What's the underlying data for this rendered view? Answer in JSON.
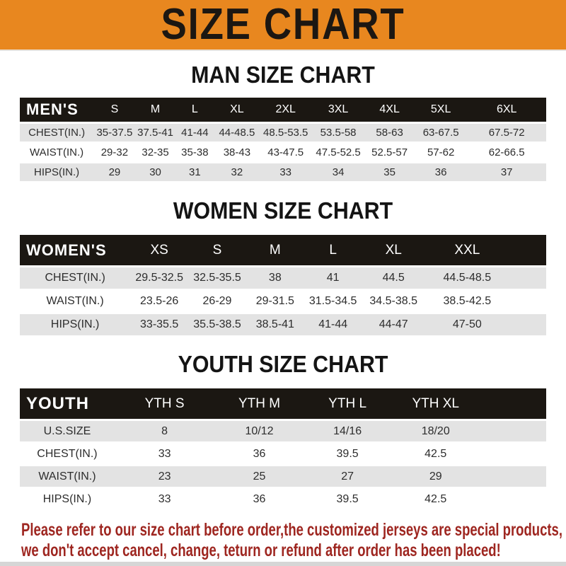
{
  "banner": {
    "title": "SIZE CHART"
  },
  "colors": {
    "banner_orange": "#E8871F",
    "header_bar_black": "#1B1712",
    "row_gray": "#E3E3E3",
    "footer_red": "#9E2620"
  },
  "sections": {
    "men": {
      "heading": "MAN SIZE CHART",
      "table": {
        "header": [
          "MEN'S",
          "S",
          "M",
          "L",
          "XL",
          "2XL",
          "3XL",
          "4XL",
          "5XL",
          "6XL"
        ],
        "rows": [
          [
            "CHEST(IN.)",
            "35-37.5",
            "37.5-41",
            "41-44",
            "44-48.5",
            "48.5-53.5",
            "53.5-58",
            "58-63",
            "63-67.5",
            "67.5-72"
          ],
          [
            "WAIST(IN.)",
            "29-32",
            "32-35",
            "35-38",
            "38-43",
            "43-47.5",
            "47.5-52.5",
            "52.5-57",
            "57-62",
            "62-66.5"
          ],
          [
            "HIPS(IN.)",
            "29",
            "30",
            "31",
            "32",
            "33",
            "34",
            "35",
            "36",
            "37"
          ]
        ]
      }
    },
    "women": {
      "heading": "WOMEN SIZE CHART",
      "table": {
        "header": [
          "WOMEN'S",
          "XS",
          "S",
          "M",
          "L",
          "XL",
          "XXL"
        ],
        "rows": [
          [
            "CHEST(IN.)",
            "29.5-32.5",
            "32.5-35.5",
            "38",
            "41",
            "44.5",
            "44.5-48.5"
          ],
          [
            "WAIST(IN.)",
            "23.5-26",
            "26-29",
            "29-31.5",
            "31.5-34.5",
            "34.5-38.5",
            "38.5-42.5"
          ],
          [
            "HIPS(IN.)",
            "33-35.5",
            "35.5-38.5",
            "38.5-41",
            "41-44",
            "44-47",
            "47-50"
          ]
        ]
      }
    },
    "youth": {
      "heading": "YOUTH SIZE CHART",
      "table": {
        "header": [
          "YOUTH",
          "YTH S",
          "YTH M",
          "YTH L",
          "YTH XL"
        ],
        "rows": [
          [
            "U.S.SIZE",
            "8",
            "10/12",
            "14/16",
            "18/20"
          ],
          [
            "CHEST(IN.)",
            "33",
            "36",
            "39.5",
            "42.5"
          ],
          [
            "WAIST(IN.)",
            "23",
            "25",
            "27",
            "29"
          ],
          [
            "HIPS(IN.)",
            "33",
            "36",
            "39.5",
            "42.5"
          ]
        ]
      }
    }
  },
  "footer": {
    "line1": "Please refer to our size chart before order,the customized jerseys are special products,",
    "line2": "we don't accept cancel, change, teturn or refund after order has been placed!"
  }
}
